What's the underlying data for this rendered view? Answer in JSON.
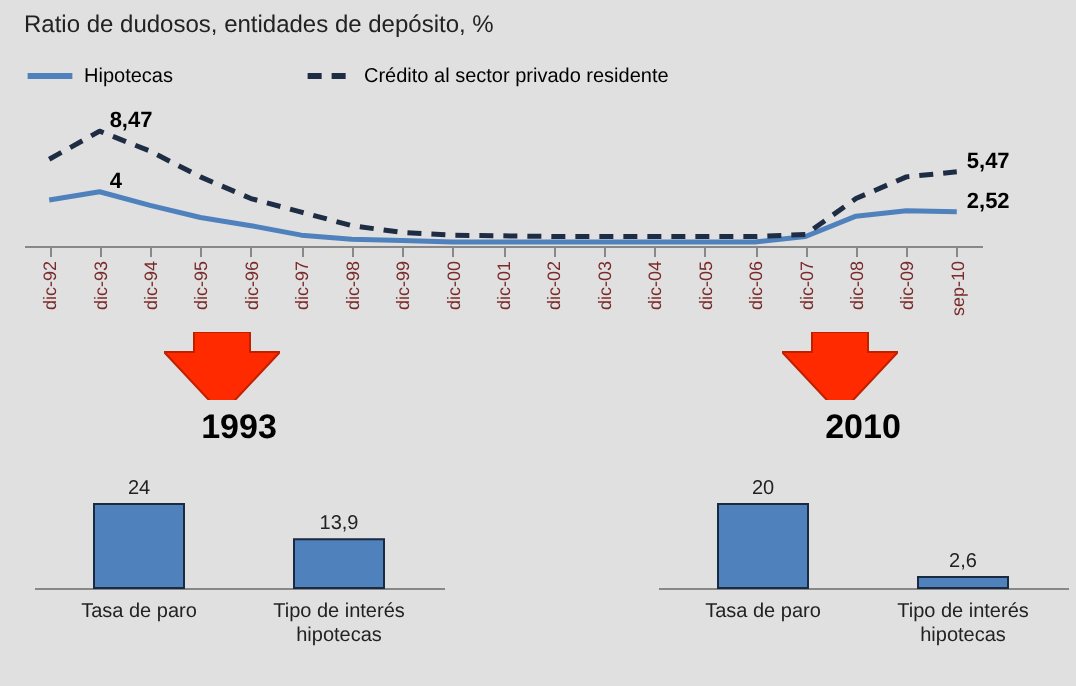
{
  "chart_data": [
    {
      "type": "line",
      "title": "Ratio de dudosos,  entidades de depósito, %",
      "legend": "top",
      "tick_labels": "x",
      "categories": [
        "dic-92",
        "dic-93",
        "dic-94",
        "dic-95",
        "dic-96",
        "dic-97",
        "dic-98",
        "dic-99",
        "dic-00",
        "dic-01",
        "dic-02",
        "dic-03",
        "dic-04",
        "dic-05",
        "dic-06",
        "dic-07",
        "dic-08",
        "dic-09",
        "sep-10"
      ],
      "series": [
        {
          "name": "Hipotecas",
          "color": "#4f81bd",
          "line_style": "solid",
          "values": [
            3.4,
            4,
            3.0,
            2.1,
            1.5,
            0.8,
            0.5,
            0.4,
            0.3,
            0.3,
            0.3,
            0.3,
            0.3,
            0.3,
            0.3,
            0.7,
            2.2,
            2.6,
            2.52
          ],
          "value_labels": [
            null,
            "4",
            null,
            null,
            null,
            null,
            null,
            null,
            null,
            null,
            null,
            null,
            null,
            null,
            null,
            null,
            null,
            null,
            "2,52"
          ]
        },
        {
          "name": "Crédito al sector privado residente",
          "color": "#1f2d44",
          "line_style": "dashed",
          "values": [
            6.4,
            8.47,
            7.0,
            5.1,
            3.5,
            2.5,
            1.5,
            1.0,
            0.8,
            0.75,
            0.7,
            0.7,
            0.7,
            0.7,
            0.7,
            0.85,
            3.5,
            5.1,
            5.47
          ],
          "value_labels": [
            null,
            "8,47",
            null,
            null,
            null,
            null,
            null,
            null,
            null,
            null,
            null,
            null,
            null,
            null,
            null,
            null,
            null,
            null,
            "5,47"
          ]
        }
      ]
    },
    {
      "type": "bar",
      "title": "1993",
      "tick_labels": "x",
      "categories": [
        "Tasa de paro",
        "Tipo de interés hipotecas"
      ],
      "values": [
        24,
        13.9
      ],
      "color": "#4f81bd",
      "value_labels": [
        "24",
        "13,9"
      ]
    },
    {
      "type": "bar",
      "title": "2010",
      "tick_labels": "x",
      "categories": [
        "Tasa de paro",
        "Tipo de interés hipotecas"
      ],
      "values": [
        20,
        2.6
      ],
      "color": "#4f81bd",
      "value_labels": [
        "20",
        "2,6"
      ]
    }
  ]
}
